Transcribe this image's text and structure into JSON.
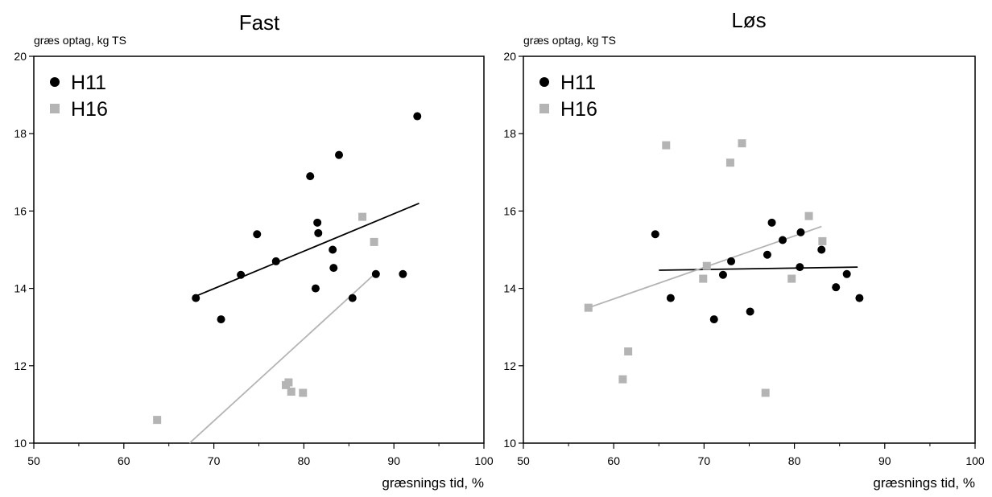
{
  "chart_data": [
    {
      "type": "scatter",
      "title": "Fast",
      "xlabel": "græsnings tid, %",
      "ylabel": "græs optag, kg TS",
      "xlim": [
        50,
        100
      ],
      "ylim": [
        10,
        20
      ],
      "xticks": [
        50,
        60,
        70,
        80,
        90,
        100
      ],
      "yticks": [
        10,
        12,
        14,
        16,
        18,
        20
      ],
      "grid": false,
      "legend_position": "top-left",
      "series": [
        {
          "name": "H11",
          "marker": "circle",
          "color": "#000000",
          "points": [
            [
              68.0,
              13.75
            ],
            [
              70.8,
              13.2
            ],
            [
              73.0,
              14.35
            ],
            [
              74.8,
              15.4
            ],
            [
              76.9,
              14.7
            ],
            [
              80.7,
              16.9
            ],
            [
              81.3,
              14.0
            ],
            [
              81.5,
              15.7
            ],
            [
              81.6,
              15.43
            ],
            [
              83.2,
              15.0
            ],
            [
              83.3,
              14.53
            ],
            [
              83.9,
              17.45
            ],
            [
              85.4,
              13.75
            ],
            [
              88.0,
              14.37
            ],
            [
              91.0,
              14.37
            ],
            [
              92.6,
              18.45
            ]
          ],
          "trendline": [
            [
              68.0,
              13.8
            ],
            [
              92.8,
              16.2
            ]
          ],
          "trend_color": "#000000"
        },
        {
          "name": "H16",
          "marker": "square",
          "color": "#b4b4b4",
          "points": [
            [
              63.7,
              10.6
            ],
            [
              78.0,
              11.5
            ],
            [
              78.3,
              11.57
            ],
            [
              78.6,
              11.33
            ],
            [
              79.9,
              11.3
            ],
            [
              86.5,
              15.85
            ],
            [
              87.8,
              15.2
            ]
          ],
          "trendline": [
            [
              67.3,
              10.0
            ],
            [
              88.0,
              14.4
            ]
          ],
          "trend_color": "#b4b4b4"
        }
      ]
    },
    {
      "type": "scatter",
      "title": "Løs",
      "xlabel": "græsnings tid, %",
      "ylabel": "græs optag, kg TS",
      "xlim": [
        50,
        100
      ],
      "ylim": [
        10,
        20
      ],
      "xticks": [
        50,
        60,
        70,
        80,
        90,
        100
      ],
      "yticks": [
        10,
        12,
        14,
        16,
        18,
        20
      ],
      "grid": false,
      "legend_position": "top-left",
      "series": [
        {
          "name": "H11",
          "marker": "circle",
          "color": "#000000",
          "points": [
            [
              64.6,
              15.4
            ],
            [
              66.3,
              13.75
            ],
            [
              71.1,
              13.2
            ],
            [
              72.1,
              14.35
            ],
            [
              73.0,
              14.7
            ],
            [
              75.1,
              13.4
            ],
            [
              77.0,
              14.87
            ],
            [
              77.5,
              15.7
            ],
            [
              78.7,
              15.25
            ],
            [
              80.6,
              14.55
            ],
            [
              80.7,
              15.45
            ],
            [
              83.0,
              15.0
            ],
            [
              84.6,
              14.03
            ],
            [
              85.8,
              14.37
            ],
            [
              87.2,
              13.75
            ]
          ],
          "trendline": [
            [
              65.0,
              14.47
            ],
            [
              87.0,
              14.55
            ]
          ],
          "trend_color": "#000000"
        },
        {
          "name": "H16",
          "marker": "square",
          "color": "#b4b4b4",
          "points": [
            [
              57.2,
              13.5
            ],
            [
              61.0,
              11.65
            ],
            [
              61.6,
              12.37
            ],
            [
              65.8,
              17.7
            ],
            [
              69.9,
              14.25
            ],
            [
              70.3,
              14.58
            ],
            [
              72.9,
              17.25
            ],
            [
              74.2,
              17.75
            ],
            [
              76.8,
              11.3
            ],
            [
              79.7,
              14.25
            ],
            [
              81.6,
              15.87
            ],
            [
              83.1,
              15.22
            ]
          ],
          "trendline": [
            [
              57.2,
              13.5
            ],
            [
              83.0,
              15.6
            ]
          ],
          "trend_color": "#b4b4b4"
        }
      ]
    }
  ]
}
